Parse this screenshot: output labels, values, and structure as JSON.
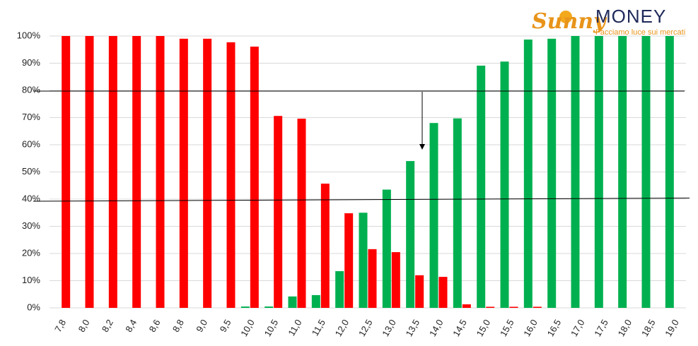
{
  "chart_data": {
    "type": "bar",
    "logo": {
      "brand1": "Sunny",
      "brand2": "MONEY",
      "tagline": "Facciamo luce sui mercati"
    },
    "categories": [
      "7,8",
      "8,0",
      "8,2",
      "8,4",
      "8,6",
      "8,8",
      "9,0",
      "9,5",
      "10,0",
      "10,5",
      "11,0",
      "11,5",
      "12,0",
      "12,5",
      "13,0",
      "13,5",
      "14,0",
      "14,5",
      "15,0",
      "15,5",
      "16,0",
      "16,5",
      "17,0",
      "17,5",
      "18,0",
      "18,5",
      "19,0"
    ],
    "series": [
      {
        "color": "#00b050",
        "values": [
          0,
          0,
          0,
          0,
          0,
          0,
          0,
          0,
          0.5,
          0.5,
          4.2,
          4.7,
          13.5,
          35,
          43.5,
          54,
          68,
          69.7,
          89.1,
          90.6,
          98.7,
          99,
          100,
          100,
          100,
          100,
          100
        ]
      },
      {
        "color": "#ff0000",
        "values": [
          100,
          100,
          100,
          100,
          100,
          99,
          99,
          97.7,
          96.1,
          70.6,
          69.6,
          45.7,
          34.8,
          21.6,
          20.5,
          12,
          11.4,
          1.3,
          0.4,
          0.4,
          0.4,
          0,
          0,
          0,
          0,
          0,
          0
        ]
      }
    ],
    "ylim": [
      0,
      100
    ],
    "yticks": [
      {
        "value": 0,
        "label": "0%"
      },
      {
        "value": 10,
        "label": "10%"
      },
      {
        "value": 20,
        "label": "20%"
      },
      {
        "value": 30,
        "label": "30%"
      },
      {
        "value": 40,
        "label": "40%"
      },
      {
        "value": 50,
        "label": "50%"
      },
      {
        "value": 60,
        "label": "60%"
      },
      {
        "value": 70,
        "label": "70%"
      },
      {
        "value": 80,
        "label": "80%"
      },
      {
        "value": 90,
        "label": "90%"
      },
      {
        "value": 100,
        "label": "100%"
      }
    ],
    "grid": true
  }
}
